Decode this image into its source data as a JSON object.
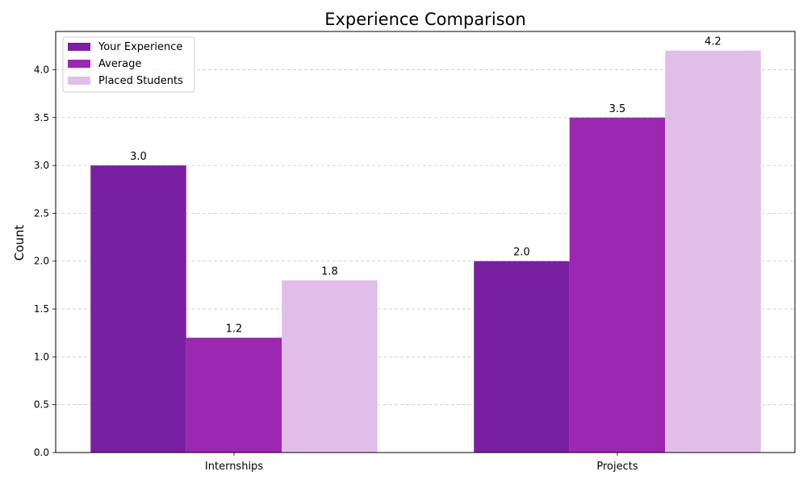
{
  "chart_data": {
    "type": "bar",
    "title": "Experience Comparison",
    "xlabel": "",
    "ylabel": "Count",
    "categories": [
      "Internships",
      "Projects"
    ],
    "series": [
      {
        "name": "Your Experience",
        "values": [
          3.0,
          2.0
        ],
        "color": "#7a1fa2"
      },
      {
        "name": "Average",
        "values": [
          1.2,
          3.5
        ],
        "color": "#9c27b0"
      },
      {
        "name": "Placed Students",
        "values": [
          1.8,
          4.2
        ],
        "color": "#e1bee7"
      }
    ],
    "ylim": [
      0,
      4.4
    ],
    "yticks": [
      "0.0",
      "0.5",
      "1.0",
      "1.5",
      "2.0",
      "2.5",
      "3.0",
      "3.5",
      "4.0"
    ],
    "data_labels": [
      [
        "3.0",
        "2.0"
      ],
      [
        "1.2",
        "3.5"
      ],
      [
        "1.8",
        "4.2"
      ]
    ],
    "grid": "y-dashed",
    "legend_position": "top-left"
  }
}
